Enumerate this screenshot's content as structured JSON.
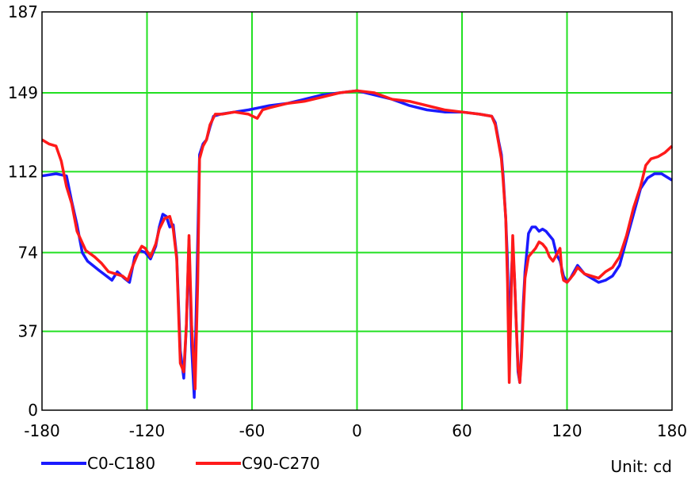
{
  "chart_data": {
    "type": "line",
    "title": "",
    "xlabel": "",
    "ylabel": "",
    "xlim": [
      -180,
      180
    ],
    "ylim": [
      0,
      187
    ],
    "x_ticks": [
      -180,
      -120,
      -60,
      0,
      60,
      120,
      180
    ],
    "y_ticks": [
      0,
      37,
      74,
      112,
      149,
      187
    ],
    "grid": true,
    "grid_color": "#22e022",
    "unit_label": "Unit: cd",
    "legend_position": "bottom-left",
    "series": [
      {
        "name": "C0-C180",
        "color": "#1a1aff",
        "points": [
          [
            -180,
            110
          ],
          [
            -172,
            111
          ],
          [
            -166,
            110
          ],
          [
            -163,
            98
          ],
          [
            -160,
            87
          ],
          [
            -157,
            74
          ],
          [
            -154,
            70
          ],
          [
            -148,
            66
          ],
          [
            -140,
            61
          ],
          [
            -137,
            65
          ],
          [
            -133,
            62
          ],
          [
            -130,
            60
          ],
          [
            -127,
            72
          ],
          [
            -124,
            75
          ],
          [
            -121,
            74
          ],
          [
            -118,
            71
          ],
          [
            -115,
            77
          ],
          [
            -113,
            86
          ],
          [
            -111,
            92
          ],
          [
            -109,
            91
          ],
          [
            -107,
            86
          ],
          [
            -105,
            87
          ],
          [
            -103,
            72
          ],
          [
            -101,
            28
          ],
          [
            -99,
            15
          ],
          [
            -97.5,
            40
          ],
          [
            -96,
            80
          ],
          [
            -94.5,
            30
          ],
          [
            -93,
            6
          ],
          [
            -91.5,
            60
          ],
          [
            -90,
            120
          ],
          [
            -88,
            125
          ],
          [
            -86,
            127
          ],
          [
            -84,
            133
          ],
          [
            -82,
            138
          ],
          [
            -78,
            139
          ],
          [
            -70,
            140
          ],
          [
            -62,
            141
          ],
          [
            -56,
            142
          ],
          [
            -50,
            143
          ],
          [
            -40,
            144
          ],
          [
            -30,
            146
          ],
          [
            -20,
            148
          ],
          [
            -10,
            149
          ],
          [
            0,
            150
          ],
          [
            10,
            148
          ],
          [
            20,
            146
          ],
          [
            30,
            143
          ],
          [
            40,
            141
          ],
          [
            50,
            140
          ],
          [
            60,
            140
          ],
          [
            70,
            139
          ],
          [
            77,
            138
          ],
          [
            79,
            135
          ],
          [
            81,
            126
          ],
          [
            82.5,
            120
          ],
          [
            83.5,
            110
          ],
          [
            85,
            90
          ],
          [
            86,
            70
          ],
          [
            87,
            21
          ],
          [
            88,
            60
          ],
          [
            89,
            76
          ],
          [
            90,
            62
          ],
          [
            91,
            40
          ],
          [
            92,
            18
          ],
          [
            93,
            13
          ],
          [
            94,
            28
          ],
          [
            95,
            50
          ],
          [
            96,
            65
          ],
          [
            98,
            83
          ],
          [
            100,
            86
          ],
          [
            102,
            86
          ],
          [
            104,
            84
          ],
          [
            106,
            85
          ],
          [
            108,
            84
          ],
          [
            110,
            82
          ],
          [
            112,
            80
          ],
          [
            114,
            73
          ],
          [
            116,
            70
          ],
          [
            118,
            63
          ],
          [
            120,
            60
          ],
          [
            122,
            62
          ],
          [
            124,
            65
          ],
          [
            126,
            68
          ],
          [
            130,
            64
          ],
          [
            134,
            62
          ],
          [
            138,
            60
          ],
          [
            142,
            61
          ],
          [
            146,
            63
          ],
          [
            150,
            68
          ],
          [
            154,
            80
          ],
          [
            158,
            92
          ],
          [
            162,
            104
          ],
          [
            166,
            109
          ],
          [
            170,
            111
          ],
          [
            174,
            111
          ],
          [
            180,
            108
          ]
        ]
      },
      {
        "name": "C90-C270",
        "color": "#ff1a1a",
        "points": [
          [
            -180,
            127
          ],
          [
            -176,
            125
          ],
          [
            -172,
            124
          ],
          [
            -169,
            117
          ],
          [
            -166,
            105
          ],
          [
            -163,
            97
          ],
          [
            -160,
            84
          ],
          [
            -155,
            75
          ],
          [
            -150,
            72
          ],
          [
            -146,
            69
          ],
          [
            -142,
            65
          ],
          [
            -138,
            64
          ],
          [
            -134,
            63
          ],
          [
            -131,
            61
          ],
          [
            -128,
            68
          ],
          [
            -125,
            74
          ],
          [
            -123,
            77
          ],
          [
            -121,
            76
          ],
          [
            -118,
            72
          ],
          [
            -115,
            78
          ],
          [
            -113,
            85
          ],
          [
            -110,
            90
          ],
          [
            -107,
            91
          ],
          [
            -105,
            85
          ],
          [
            -103,
            71
          ],
          [
            -101,
            22
          ],
          [
            -99,
            18
          ],
          [
            -97.5,
            40
          ],
          [
            -96,
            82
          ],
          [
            -94.5,
            40
          ],
          [
            -92.5,
            10
          ],
          [
            -91,
            60
          ],
          [
            -90,
            118
          ],
          [
            -88,
            124
          ],
          [
            -86,
            127
          ],
          [
            -84,
            134
          ],
          [
            -81,
            139
          ],
          [
            -77,
            139
          ],
          [
            -70,
            140
          ],
          [
            -62,
            139
          ],
          [
            -57,
            137
          ],
          [
            -54,
            141
          ],
          [
            -50,
            142
          ],
          [
            -40,
            144
          ],
          [
            -30,
            145
          ],
          [
            -20,
            147
          ],
          [
            -10,
            149
          ],
          [
            0,
            150
          ],
          [
            10,
            149
          ],
          [
            20,
            146
          ],
          [
            30,
            145
          ],
          [
            40,
            143
          ],
          [
            50,
            141
          ],
          [
            60,
            140
          ],
          [
            70,
            139
          ],
          [
            77,
            138
          ],
          [
            79,
            134
          ],
          [
            81,
            125
          ],
          [
            82.5,
            118
          ],
          [
            83.5,
            108
          ],
          [
            85,
            90
          ],
          [
            86,
            60
          ],
          [
            87,
            13
          ],
          [
            88,
            50
          ],
          [
            89,
            82
          ],
          [
            90,
            62
          ],
          [
            91,
            40
          ],
          [
            92,
            20
          ],
          [
            93,
            13
          ],
          [
            94,
            25
          ],
          [
            95,
            45
          ],
          [
            96,
            62
          ],
          [
            98,
            72
          ],
          [
            100,
            74
          ],
          [
            102,
            76
          ],
          [
            104,
            79
          ],
          [
            106,
            78
          ],
          [
            108,
            76
          ],
          [
            110,
            72
          ],
          [
            112,
            70
          ],
          [
            114,
            73
          ],
          [
            116,
            76
          ],
          [
            117,
            65
          ],
          [
            118,
            61
          ],
          [
            120,
            60
          ],
          [
            122,
            62
          ],
          [
            124,
            64
          ],
          [
            126,
            67
          ],
          [
            130,
            64
          ],
          [
            134,
            63
          ],
          [
            138,
            62
          ],
          [
            142,
            65
          ],
          [
            146,
            67
          ],
          [
            150,
            72
          ],
          [
            154,
            82
          ],
          [
            158,
            95
          ],
          [
            162,
            105
          ],
          [
            165,
            115
          ],
          [
            168,
            118
          ],
          [
            172,
            119
          ],
          [
            176,
            121
          ],
          [
            180,
            124
          ]
        ]
      }
    ]
  }
}
